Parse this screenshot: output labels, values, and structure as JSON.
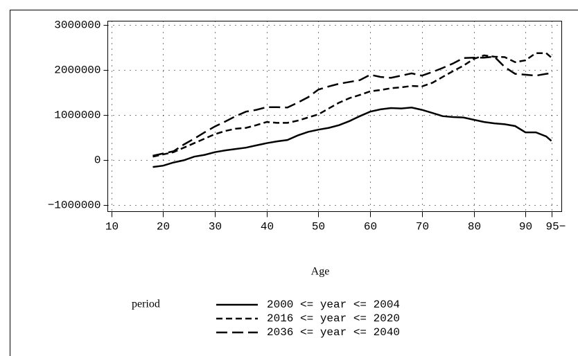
{
  "chart_data": {
    "type": "line",
    "x_label": "Age",
    "legend_title": "period",
    "x": [
      18,
      20,
      22,
      24,
      26,
      28,
      30,
      32,
      34,
      36,
      38,
      40,
      42,
      44,
      46,
      48,
      50,
      52,
      54,
      56,
      58,
      60,
      62,
      64,
      66,
      68,
      70,
      72,
      74,
      76,
      78,
      80,
      82,
      84,
      86,
      88,
      90,
      92,
      94,
      95
    ],
    "series": [
      {
        "name": "2000 <= year <= 2004",
        "color": "#000000",
        "dash": "none",
        "values": [
          -150000,
          -120000,
          -50000,
          0,
          80000,
          120000,
          180000,
          220000,
          250000,
          280000,
          330000,
          380000,
          420000,
          450000,
          550000,
          630000,
          680000,
          720000,
          780000,
          870000,
          980000,
          1080000,
          1130000,
          1160000,
          1150000,
          1170000,
          1120000,
          1050000,
          980000,
          960000,
          950000,
          900000,
          850000,
          820000,
          800000,
          760000,
          620000,
          620000,
          530000,
          430000
        ]
      },
      {
        "name": "2016 <= year <= 2020",
        "color": "#000000",
        "dash": "9,5",
        "values": [
          80000,
          130000,
          180000,
          280000,
          380000,
          480000,
          580000,
          650000,
          700000,
          720000,
          780000,
          850000,
          830000,
          830000,
          880000,
          950000,
          1020000,
          1150000,
          1280000,
          1380000,
          1450000,
          1530000,
          1560000,
          1600000,
          1620000,
          1650000,
          1640000,
          1720000,
          1850000,
          1980000,
          2100000,
          2250000,
          2330000,
          2300000,
          2290000,
          2180000,
          2220000,
          2380000,
          2380000,
          2280000
        ]
      },
      {
        "name": "2036 <= year <= 2040",
        "color": "#000000",
        "dash": "16,7",
        "values": [
          100000,
          150000,
          200000,
          350000,
          480000,
          620000,
          750000,
          860000,
          980000,
          1080000,
          1120000,
          1180000,
          1180000,
          1170000,
          1280000,
          1400000,
          1570000,
          1640000,
          1700000,
          1740000,
          1780000,
          1900000,
          1850000,
          1830000,
          1880000,
          1930000,
          1880000,
          1960000,
          2050000,
          2150000,
          2270000,
          2280000,
          2280000,
          2300000,
          2070000,
          1920000,
          1900000,
          1880000,
          1920000,
          1930000
        ]
      }
    ],
    "xlim": [
      9.3,
      97
    ],
    "ylim": [
      -1140000,
      3090000
    ],
    "xticks": [
      10,
      20,
      30,
      40,
      50,
      60,
      70,
      80,
      90,
      {
        "value": 95,
        "label": "95−"
      }
    ],
    "yticks": [
      {
        "value": -1000000,
        "label": "−1000000"
      },
      0,
      1000000,
      2000000,
      3000000
    ],
    "grid": true
  }
}
